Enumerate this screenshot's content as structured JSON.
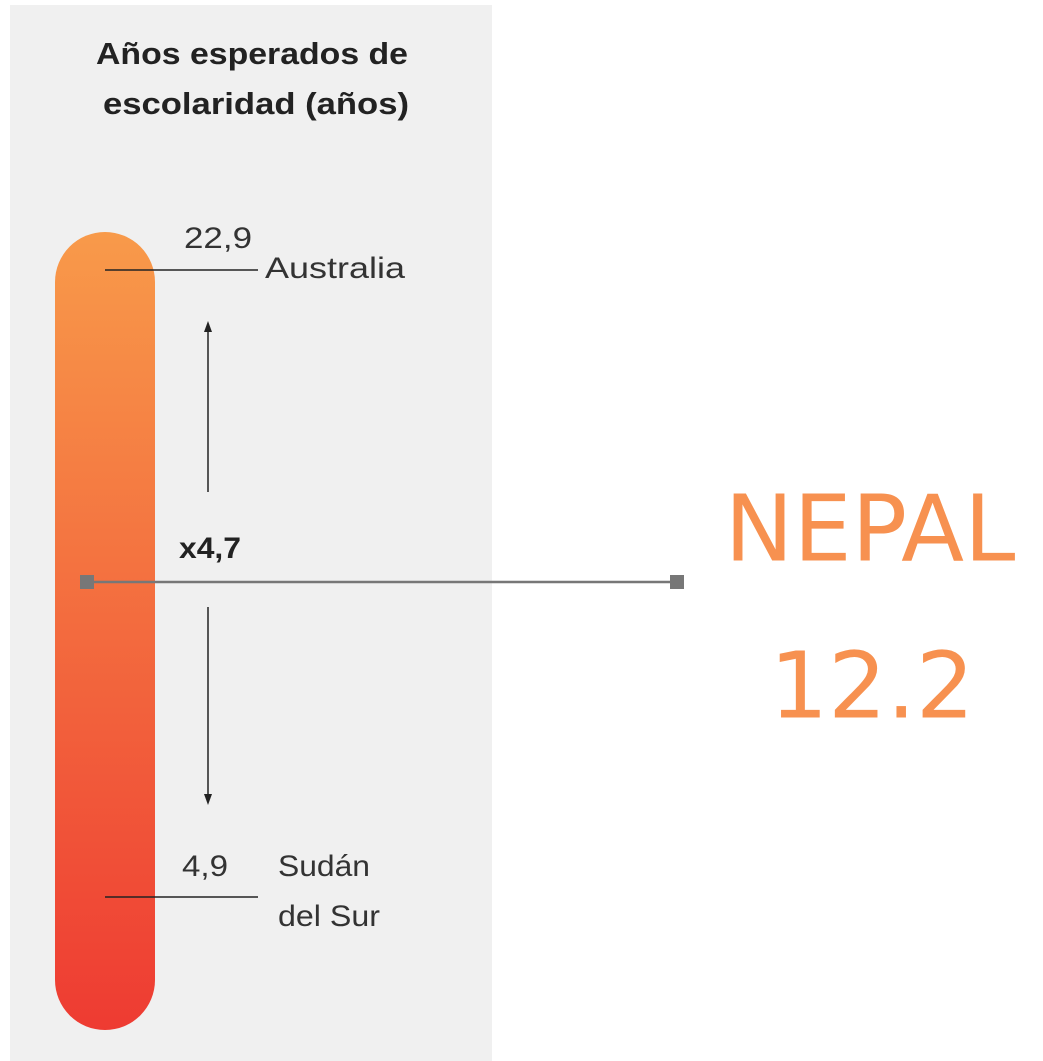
{
  "panel": {
    "title_lines": [
      "Años esperados de",
      "escolaridad (años)"
    ],
    "top": {
      "value": "22,9",
      "country": "Australia"
    },
    "bottom": {
      "value": "4,9",
      "country_lines": [
        "Sudán",
        "del Sur"
      ]
    },
    "ratio": "x4,7"
  },
  "highlight": {
    "country": "NEPAL",
    "value": "12.2"
  }
}
